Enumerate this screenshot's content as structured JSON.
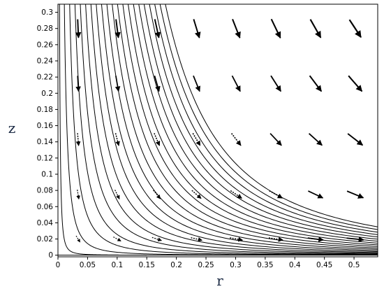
{
  "chart_data": {
    "type": "streamline",
    "title": "",
    "xlabel": "r",
    "ylabel": "z",
    "xlim": [
      0,
      0.54
    ],
    "ylim": [
      -0.002,
      0.31
    ],
    "x_ticks": [
      "0",
      "0.05",
      "0.1",
      "0.15",
      "0.2",
      "0.25",
      "0.3",
      "0.35",
      "0.4",
      "0.45",
      "0.5"
    ],
    "y_ticks": [
      "0",
      "0.02",
      "0.04",
      "0.06",
      "0.08",
      "0.1",
      "0.12",
      "0.14",
      "0.16",
      "0.18",
      "0.2",
      "0.22",
      "0.24",
      "0.26",
      "0.28",
      "0.3"
    ],
    "flow": "stagnation-point flow toward the plane z = 0: streamlines r·sqrt(z) = constant, velocity u_r ∝ r, u_z ∝ -2z",
    "streamline_constants": [
      0.0015,
      0.006,
      0.011,
      0.016,
      0.021,
      0.026,
      0.031,
      0.036,
      0.041,
      0.046,
      0.051,
      0.056,
      0.061,
      0.066,
      0.071,
      0.076,
      0.081,
      0.086,
      0.091,
      0.096,
      0.101
    ],
    "arrow_grid_r": [
      0.034,
      0.1,
      0.167,
      0.234,
      0.301,
      0.368,
      0.435,
      0.502
    ],
    "arrow_grid_z": [
      0.28,
      0.212,
      0.143,
      0.075,
      0.02
    ],
    "grid": false,
    "legend": "none"
  }
}
